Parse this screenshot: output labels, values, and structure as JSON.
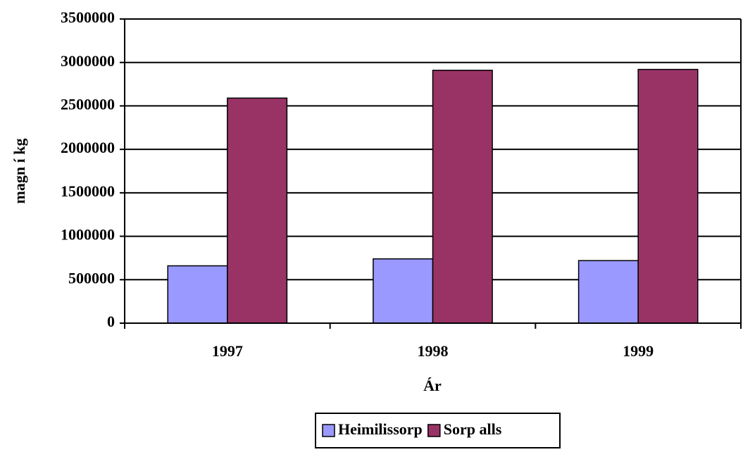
{
  "chart_data": {
    "type": "bar",
    "categories": [
      "1997",
      "1998",
      "1999"
    ],
    "series": [
      {
        "name": "Heimilissorp",
        "color": "#9999ff",
        "values": [
          660000,
          740000,
          720000
        ]
      },
      {
        "name": "Sorp alls",
        "color": "#993366",
        "values": [
          2590000,
          2910000,
          2920000
        ]
      }
    ],
    "x_label": "Ár",
    "y_label": "magn í kg",
    "ylim": [
      0,
      3500000
    ],
    "yticks": [
      0,
      500000,
      1000000,
      1500000,
      2000000,
      2500000,
      3000000,
      3500000
    ],
    "grid": true,
    "legend": "bottom"
  }
}
